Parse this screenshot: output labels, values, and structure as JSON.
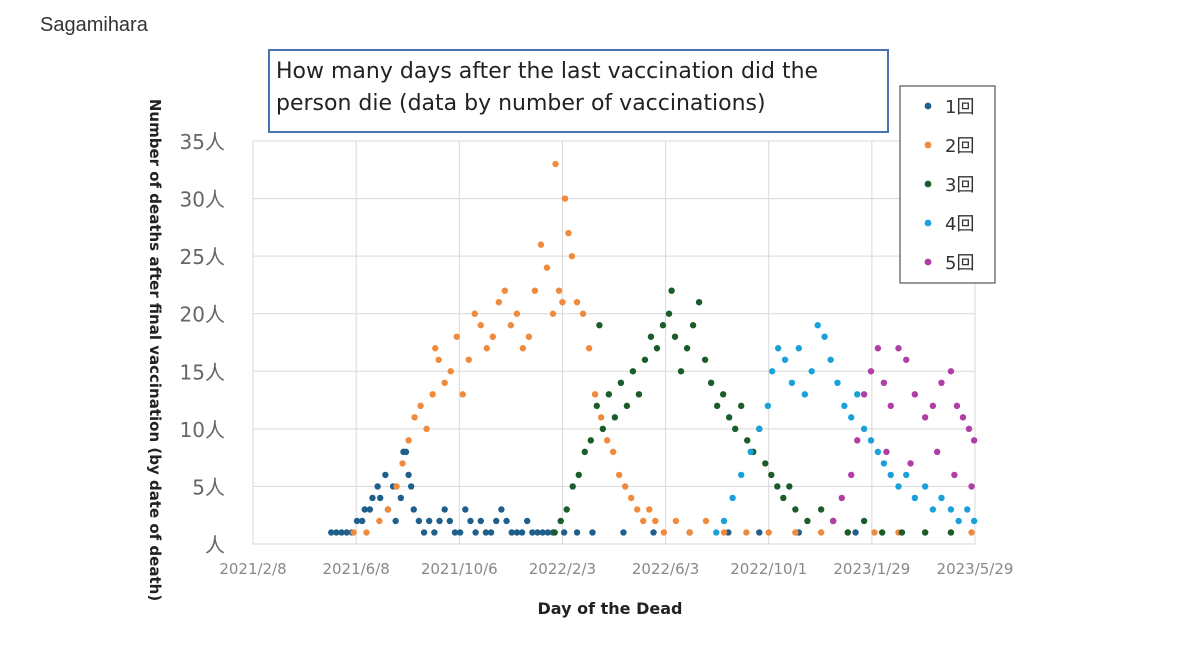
{
  "page": {
    "label": "Sagamihara"
  },
  "chart_data": {
    "type": "scatter",
    "title": "How many days after the last vaccination did the person die (data by number of vaccinations)",
    "xlabel": "Day of the Dead",
    "ylabel": "Number of deaths after final vaccination (by date of death)",
    "x_ticks": [
      "2021/2/8",
      "2021/6/8",
      "2021/10/6",
      "2022/2/3",
      "2022/6/3",
      "2022/10/1",
      "2023/1/29",
      "2023/5/29"
    ],
    "x_range": [
      "2021-02-08",
      "2023-05-29"
    ],
    "y_ticks": [
      "人",
      "5人",
      "10人",
      "15人",
      "20人",
      "25人",
      "30人",
      "35人"
    ],
    "ylim": [
      0,
      35
    ],
    "grid": true,
    "legend_position": "top-right",
    "series": [
      {
        "name": "1回",
        "color": "#1f5f8b",
        "points": [
          [
            "2021-05-10",
            1
          ],
          [
            "2021-05-16",
            1
          ],
          [
            "2021-05-22",
            1
          ],
          [
            "2021-05-28",
            1
          ],
          [
            "2021-06-03",
            1
          ],
          [
            "2021-06-09",
            2
          ],
          [
            "2021-06-15",
            2
          ],
          [
            "2021-06-18",
            3
          ],
          [
            "2021-06-24",
            3
          ],
          [
            "2021-06-27",
            4
          ],
          [
            "2021-07-03",
            5
          ],
          [
            "2021-07-06",
            4
          ],
          [
            "2021-07-12",
            6
          ],
          [
            "2021-07-15",
            3
          ],
          [
            "2021-07-21",
            5
          ],
          [
            "2021-07-24",
            2
          ],
          [
            "2021-07-30",
            4
          ],
          [
            "2021-08-02",
            8
          ],
          [
            "2021-08-05",
            8
          ],
          [
            "2021-08-08",
            6
          ],
          [
            "2021-08-11",
            5
          ],
          [
            "2021-08-14",
            3
          ],
          [
            "2021-08-20",
            2
          ],
          [
            "2021-08-26",
            1
          ],
          [
            "2021-09-01",
            2
          ],
          [
            "2021-09-07",
            1
          ],
          [
            "2021-09-13",
            2
          ],
          [
            "2021-09-19",
            3
          ],
          [
            "2021-09-25",
            2
          ],
          [
            "2021-10-01",
            1
          ],
          [
            "2021-10-07",
            1
          ],
          [
            "2021-10-13",
            3
          ],
          [
            "2021-10-19",
            2
          ],
          [
            "2021-10-25",
            1
          ],
          [
            "2021-10-31",
            2
          ],
          [
            "2021-11-06",
            1
          ],
          [
            "2021-11-12",
            1
          ],
          [
            "2021-11-18",
            2
          ],
          [
            "2021-11-24",
            3
          ],
          [
            "2021-11-30",
            2
          ],
          [
            "2021-12-06",
            1
          ],
          [
            "2021-12-12",
            1
          ],
          [
            "2021-12-18",
            1
          ],
          [
            "2021-12-24",
            2
          ],
          [
            "2021-12-30",
            1
          ],
          [
            "2022-01-05",
            1
          ],
          [
            "2022-01-11",
            1
          ],
          [
            "2022-01-17",
            1
          ],
          [
            "2022-01-23",
            1
          ],
          [
            "2022-02-05",
            1
          ],
          [
            "2022-02-20",
            1
          ],
          [
            "2022-03-10",
            1
          ],
          [
            "2022-04-15",
            1
          ],
          [
            "2022-05-20",
            1
          ],
          [
            "2022-07-01",
            1
          ],
          [
            "2022-08-15",
            1
          ],
          [
            "2022-09-20",
            1
          ],
          [
            "2022-11-05",
            1
          ],
          [
            "2023-01-10",
            1
          ]
        ]
      },
      {
        "name": "2回",
        "color": "#f08a3c",
        "points": [
          [
            "2021-06-05",
            1
          ],
          [
            "2021-06-20",
            1
          ],
          [
            "2021-07-05",
            2
          ],
          [
            "2021-07-15",
            3
          ],
          [
            "2021-07-25",
            5
          ],
          [
            "2021-08-01",
            7
          ],
          [
            "2021-08-08",
            9
          ],
          [
            "2021-08-15",
            11
          ],
          [
            "2021-08-22",
            12
          ],
          [
            "2021-08-29",
            10
          ],
          [
            "2021-09-05",
            13
          ],
          [
            "2021-09-08",
            17
          ],
          [
            "2021-09-12",
            16
          ],
          [
            "2021-09-19",
            14
          ],
          [
            "2021-09-26",
            15
          ],
          [
            "2021-10-03",
            18
          ],
          [
            "2021-10-10",
            13
          ],
          [
            "2021-10-17",
            16
          ],
          [
            "2021-10-24",
            20
          ],
          [
            "2021-10-31",
            19
          ],
          [
            "2021-11-07",
            17
          ],
          [
            "2021-11-14",
            18
          ],
          [
            "2021-11-21",
            21
          ],
          [
            "2021-11-28",
            22
          ],
          [
            "2021-12-05",
            19
          ],
          [
            "2021-12-12",
            20
          ],
          [
            "2021-12-19",
            17
          ],
          [
            "2021-12-26",
            18
          ],
          [
            "2022-01-02",
            22
          ],
          [
            "2022-01-09",
            26
          ],
          [
            "2022-01-16",
            24
          ],
          [
            "2022-01-23",
            20
          ],
          [
            "2022-01-26",
            33
          ],
          [
            "2022-01-30",
            22
          ],
          [
            "2022-02-03",
            21
          ],
          [
            "2022-02-06",
            30
          ],
          [
            "2022-02-10",
            27
          ],
          [
            "2022-02-14",
            25
          ],
          [
            "2022-02-20",
            21
          ],
          [
            "2022-02-27",
            20
          ],
          [
            "2022-03-06",
            17
          ],
          [
            "2022-03-13",
            13
          ],
          [
            "2022-03-20",
            11
          ],
          [
            "2022-03-27",
            9
          ],
          [
            "2022-04-03",
            8
          ],
          [
            "2022-04-10",
            6
          ],
          [
            "2022-04-17",
            5
          ],
          [
            "2022-04-24",
            4
          ],
          [
            "2022-05-01",
            3
          ],
          [
            "2022-05-08",
            2
          ],
          [
            "2022-05-15",
            3
          ],
          [
            "2022-05-22",
            2
          ],
          [
            "2022-06-01",
            1
          ],
          [
            "2022-06-15",
            2
          ],
          [
            "2022-07-01",
            1
          ],
          [
            "2022-07-20",
            2
          ],
          [
            "2022-08-10",
            1
          ],
          [
            "2022-09-05",
            1
          ],
          [
            "2022-10-01",
            1
          ],
          [
            "2022-11-01",
            1
          ],
          [
            "2022-12-01",
            1
          ],
          [
            "2023-01-01",
            1
          ],
          [
            "2023-02-01",
            1
          ],
          [
            "2023-03-01",
            1
          ],
          [
            "2023-04-01",
            1
          ],
          [
            "2023-05-01",
            1
          ],
          [
            "2023-05-25",
            1
          ]
        ]
      },
      {
        "name": "3回",
        "color": "#1a5c2a",
        "points": [
          [
            "2022-01-25",
            1
          ],
          [
            "2022-02-01",
            2
          ],
          [
            "2022-02-08",
            3
          ],
          [
            "2022-02-15",
            5
          ],
          [
            "2022-02-22",
            6
          ],
          [
            "2022-03-01",
            8
          ],
          [
            "2022-03-08",
            9
          ],
          [
            "2022-03-15",
            12
          ],
          [
            "2022-03-18",
            19
          ],
          [
            "2022-03-22",
            10
          ],
          [
            "2022-03-29",
            13
          ],
          [
            "2022-04-05",
            11
          ],
          [
            "2022-04-12",
            14
          ],
          [
            "2022-04-19",
            12
          ],
          [
            "2022-04-26",
            15
          ],
          [
            "2022-05-03",
            13
          ],
          [
            "2022-05-10",
            16
          ],
          [
            "2022-05-17",
            18
          ],
          [
            "2022-05-24",
            17
          ],
          [
            "2022-05-31",
            19
          ],
          [
            "2022-06-07",
            20
          ],
          [
            "2022-06-10",
            22
          ],
          [
            "2022-06-14",
            18
          ],
          [
            "2022-06-21",
            15
          ],
          [
            "2022-06-28",
            17
          ],
          [
            "2022-07-05",
            19
          ],
          [
            "2022-07-12",
            21
          ],
          [
            "2022-07-19",
            16
          ],
          [
            "2022-07-26",
            14
          ],
          [
            "2022-08-02",
            12
          ],
          [
            "2022-08-09",
            13
          ],
          [
            "2022-08-16",
            11
          ],
          [
            "2022-08-23",
            10
          ],
          [
            "2022-08-30",
            12
          ],
          [
            "2022-09-06",
            9
          ],
          [
            "2022-09-13",
            8
          ],
          [
            "2022-09-20",
            10
          ],
          [
            "2022-09-27",
            7
          ],
          [
            "2022-10-04",
            6
          ],
          [
            "2022-10-11",
            5
          ],
          [
            "2022-10-18",
            4
          ],
          [
            "2022-10-25",
            5
          ],
          [
            "2022-11-01",
            3
          ],
          [
            "2022-11-15",
            2
          ],
          [
            "2022-12-01",
            3
          ],
          [
            "2022-12-15",
            2
          ],
          [
            "2023-01-01",
            1
          ],
          [
            "2023-01-20",
            2
          ],
          [
            "2023-02-10",
            1
          ],
          [
            "2023-03-05",
            1
          ],
          [
            "2023-04-01",
            1
          ],
          [
            "2023-05-01",
            1
          ]
        ]
      },
      {
        "name": "4回",
        "color": "#1aa1d9",
        "points": [
          [
            "2022-08-01",
            1
          ],
          [
            "2022-08-10",
            2
          ],
          [
            "2022-08-20",
            4
          ],
          [
            "2022-08-30",
            6
          ],
          [
            "2022-09-10",
            8
          ],
          [
            "2022-09-20",
            10
          ],
          [
            "2022-09-30",
            12
          ],
          [
            "2022-10-05",
            15
          ],
          [
            "2022-10-12",
            17
          ],
          [
            "2022-10-20",
            16
          ],
          [
            "2022-10-28",
            14
          ],
          [
            "2022-11-05",
            17
          ],
          [
            "2022-11-12",
            13
          ],
          [
            "2022-11-20",
            15
          ],
          [
            "2022-11-27",
            19
          ],
          [
            "2022-12-05",
            18
          ],
          [
            "2022-12-12",
            16
          ],
          [
            "2022-12-20",
            14
          ],
          [
            "2022-12-28",
            12
          ],
          [
            "2023-01-05",
            11
          ],
          [
            "2023-01-12",
            13
          ],
          [
            "2023-01-20",
            10
          ],
          [
            "2023-01-28",
            9
          ],
          [
            "2023-02-05",
            8
          ],
          [
            "2023-02-12",
            7
          ],
          [
            "2023-02-20",
            6
          ],
          [
            "2023-03-01",
            5
          ],
          [
            "2023-03-10",
            6
          ],
          [
            "2023-03-20",
            4
          ],
          [
            "2023-04-01",
            5
          ],
          [
            "2023-04-10",
            3
          ],
          [
            "2023-04-20",
            4
          ],
          [
            "2023-05-01",
            3
          ],
          [
            "2023-05-10",
            2
          ],
          [
            "2023-05-20",
            3
          ],
          [
            "2023-05-28",
            2
          ]
        ]
      },
      {
        "name": "5回",
        "color": "#b03ea5",
        "points": [
          [
            "2022-12-15",
            2
          ],
          [
            "2022-12-25",
            4
          ],
          [
            "2023-01-05",
            6
          ],
          [
            "2023-01-12",
            9
          ],
          [
            "2023-01-20",
            13
          ],
          [
            "2023-01-28",
            15
          ],
          [
            "2023-02-05",
            17
          ],
          [
            "2023-02-12",
            14
          ],
          [
            "2023-02-20",
            12
          ],
          [
            "2023-03-01",
            17
          ],
          [
            "2023-03-10",
            16
          ],
          [
            "2023-03-20",
            13
          ],
          [
            "2023-04-01",
            11
          ],
          [
            "2023-04-10",
            12
          ],
          [
            "2023-04-20",
            14
          ],
          [
            "2023-05-01",
            15
          ],
          [
            "2023-05-08",
            12
          ],
          [
            "2023-05-15",
            11
          ],
          [
            "2023-05-22",
            10
          ],
          [
            "2023-05-28",
            9
          ],
          [
            "2023-02-15",
            8
          ],
          [
            "2023-03-15",
            7
          ],
          [
            "2023-04-15",
            8
          ],
          [
            "2023-05-05",
            6
          ],
          [
            "2023-05-25",
            5
          ]
        ]
      }
    ]
  }
}
